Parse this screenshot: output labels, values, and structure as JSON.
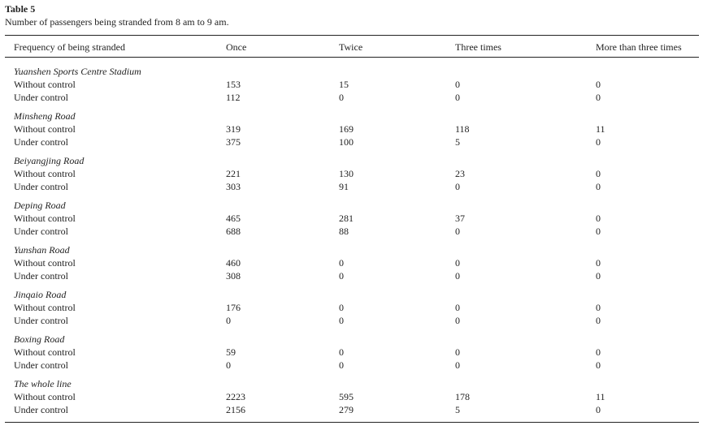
{
  "header": {
    "title": "Table 5",
    "caption": "Number of passengers being stranded from 8 am to 9 am."
  },
  "table": {
    "columns": [
      "Frequency of being stranded",
      "Once",
      "Twice",
      "Three times",
      "More than three times"
    ],
    "groups": [
      {
        "name": "Yuanshen Sports Centre Stadium",
        "rows": [
          [
            "Without control",
            153,
            15,
            0,
            0
          ],
          [
            "Under control",
            112,
            0,
            0,
            0
          ]
        ]
      },
      {
        "name": "Minsheng Road",
        "rows": [
          [
            "Without control",
            319,
            169,
            118,
            11
          ],
          [
            "Under control",
            375,
            100,
            5,
            0
          ]
        ]
      },
      {
        "name": "Beiyangjing Road",
        "rows": [
          [
            "Without control",
            221,
            130,
            23,
            0
          ],
          [
            "Under control",
            303,
            91,
            0,
            0
          ]
        ]
      },
      {
        "name": "Deping Road",
        "rows": [
          [
            "Without control",
            465,
            281,
            37,
            0
          ],
          [
            "Under control",
            688,
            88,
            0,
            0
          ]
        ]
      },
      {
        "name": "Yunshan Road",
        "rows": [
          [
            "Without control",
            460,
            0,
            0,
            0
          ],
          [
            "Under control",
            308,
            0,
            0,
            0
          ]
        ]
      },
      {
        "name": "Jinqaio Road",
        "rows": [
          [
            "Without control",
            176,
            0,
            0,
            0
          ],
          [
            "Under control",
            0,
            0,
            0,
            0
          ]
        ]
      },
      {
        "name": "Boxing Road",
        "rows": [
          [
            "Without control",
            59,
            0,
            0,
            0
          ],
          [
            "Under control",
            0,
            0,
            0,
            0
          ]
        ]
      },
      {
        "name": "The whole line",
        "rows": [
          [
            "Without control",
            2223,
            595,
            178,
            11
          ],
          [
            "Under control",
            2156,
            279,
            5,
            0
          ]
        ]
      }
    ]
  }
}
